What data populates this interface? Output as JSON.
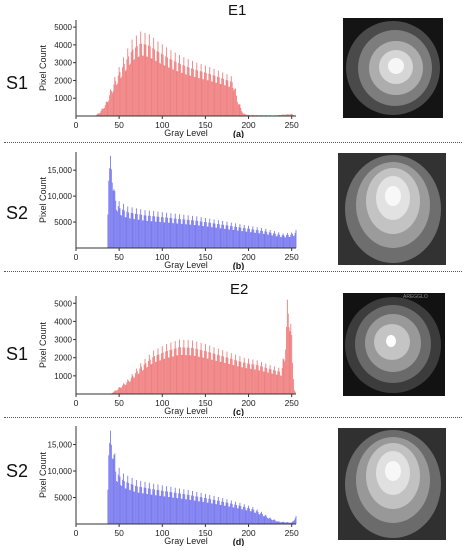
{
  "experiments": {
    "e1": "E1",
    "e2": "E2"
  },
  "rows": {
    "s1": "S1",
    "s2": "S2"
  },
  "watermark": "AREGGLO",
  "colors": {
    "red_series": "#f08080",
    "blue_series": "#7b7bf0"
  },
  "chart_data": [
    {
      "id": "a",
      "type": "bar",
      "panel_label": "(a)",
      "xlabel": "Gray Level",
      "ylabel": "Pixel Count",
      "xlim": [
        0,
        255
      ],
      "ylim": [
        0,
        5400
      ],
      "xticks": [
        0,
        50,
        100,
        150,
        200,
        250
      ],
      "yticks": [
        {
          "v": 1000,
          "t": "1000"
        },
        {
          "v": 2000,
          "t": "2000"
        },
        {
          "v": 3000,
          "t": "3000"
        },
        {
          "v": 4000,
          "t": "4000"
        },
        {
          "v": 5000,
          "t": "5000"
        }
      ],
      "color": "#f08080",
      "envelope": [
        [
          0,
          0
        ],
        [
          22,
          0
        ],
        [
          28,
          250
        ],
        [
          35,
          800
        ],
        [
          45,
          2200
        ],
        [
          55,
          3300
        ],
        [
          65,
          4300
        ],
        [
          75,
          4750
        ],
        [
          85,
          4600
        ],
        [
          95,
          4200
        ],
        [
          110,
          3700
        ],
        [
          125,
          3300
        ],
        [
          140,
          3000
        ],
        [
          155,
          2750
        ],
        [
          170,
          2450
        ],
        [
          182,
          2200
        ],
        [
          188,
          900
        ],
        [
          194,
          150
        ],
        [
          200,
          60
        ],
        [
          230,
          40
        ],
        [
          250,
          120
        ],
        [
          255,
          0
        ]
      ]
    },
    {
      "id": "b",
      "type": "bar",
      "panel_label": "(b)",
      "xlabel": "Gray Level",
      "ylabel": "Pixel Count",
      "xlim": [
        0,
        255
      ],
      "ylim": [
        0,
        18500
      ],
      "xticks": [
        0,
        50,
        100,
        150,
        200,
        250
      ],
      "yticks": [
        {
          "v": 5000,
          "t": "5000"
        },
        {
          "v": 10000,
          "t": "10,000"
        },
        {
          "v": 15000,
          "t": "15,000"
        }
      ],
      "color": "#7b7bf0",
      "envelope": [
        [
          0,
          0
        ],
        [
          36,
          0
        ],
        [
          38,
          18000
        ],
        [
          42,
          17500
        ],
        [
          45,
          11000
        ],
        [
          50,
          9000
        ],
        [
          60,
          8000
        ],
        [
          80,
          7300
        ],
        [
          100,
          6900
        ],
        [
          120,
          6500
        ],
        [
          140,
          6100
        ],
        [
          160,
          5500
        ],
        [
          180,
          4900
        ],
        [
          200,
          4300
        ],
        [
          220,
          3700
        ],
        [
          240,
          2800
        ],
        [
          250,
          3000
        ],
        [
          255,
          3500
        ]
      ]
    },
    {
      "id": "c",
      "type": "bar",
      "panel_label": "(c)",
      "xlabel": "Gray Level",
      "ylabel": "Pixel Count",
      "xlim": [
        0,
        255
      ],
      "ylim": [
        0,
        5400
      ],
      "xticks": [
        0,
        50,
        100,
        150,
        200,
        250
      ],
      "yticks": [
        {
          "v": 1000,
          "t": "1000"
        },
        {
          "v": 2000,
          "t": "2000"
        },
        {
          "v": 3000,
          "t": "3000"
        },
        {
          "v": 4000,
          "t": "4000"
        },
        {
          "v": 5000,
          "t": "5000"
        }
      ],
      "color": "#f08080",
      "envelope": [
        [
          0,
          0
        ],
        [
          40,
          0
        ],
        [
          48,
          300
        ],
        [
          60,
          800
        ],
        [
          75,
          1700
        ],
        [
          90,
          2400
        ],
        [
          105,
          2750
        ],
        [
          120,
          3000
        ],
        [
          135,
          2950
        ],
        [
          150,
          2750
        ],
        [
          165,
          2500
        ],
        [
          180,
          2250
        ],
        [
          195,
          2000
        ],
        [
          210,
          1850
        ],
        [
          225,
          1600
        ],
        [
          238,
          1400
        ],
        [
          242,
          2500
        ],
        [
          245,
          5200
        ],
        [
          247,
          5100
        ],
        [
          249,
          4500
        ],
        [
          251,
          2000
        ],
        [
          253,
          300
        ],
        [
          255,
          0
        ]
      ]
    },
    {
      "id": "d",
      "type": "bar",
      "panel_label": "(d)",
      "xlabel": "Gray Level",
      "ylabel": "Pixel Count",
      "xlim": [
        0,
        255
      ],
      "ylim": [
        0,
        18500
      ],
      "xticks": [
        0,
        50,
        100,
        150,
        200,
        250
      ],
      "yticks": [
        {
          "v": 5000,
          "t": "5000"
        },
        {
          "v": 10000,
          "t": "10,000"
        },
        {
          "v": 15000,
          "t": "15,000"
        }
      ],
      "color": "#7b7bf0",
      "envelope": [
        [
          0,
          0
        ],
        [
          36,
          0
        ],
        [
          38,
          18000
        ],
        [
          43,
          17000
        ],
        [
          46,
          11500
        ],
        [
          55,
          9500
        ],
        [
          70,
          8300
        ],
        [
          90,
          7600
        ],
        [
          110,
          7000
        ],
        [
          130,
          6400
        ],
        [
          150,
          5700
        ],
        [
          170,
          4900
        ],
        [
          190,
          4000
        ],
        [
          205,
          3200
        ],
        [
          215,
          2300
        ],
        [
          225,
          1200
        ],
        [
          235,
          500
        ],
        [
          250,
          300
        ],
        [
          255,
          1500
        ]
      ]
    }
  ]
}
